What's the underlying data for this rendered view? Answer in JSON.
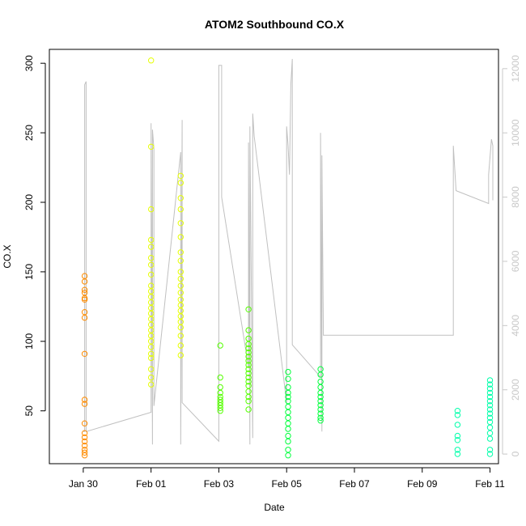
{
  "chart_data": {
    "type": "scatter",
    "title": "ATOM2 Southbound CO.X",
    "xlabel": "Date",
    "ylabel": "CO.X",
    "x_ticks": [
      "Jan 30",
      "Feb 01",
      "Feb 03",
      "Feb 05",
      "Feb 07",
      "Feb 09",
      "Feb 11"
    ],
    "y_ticks": [
      50,
      100,
      150,
      200,
      250,
      300
    ],
    "y2_ticks": [
      0,
      2000,
      4000,
      6000,
      8000,
      10000,
      12000
    ],
    "xlim": [
      "2014-01-29T00:00",
      "2014-02-11T06:00"
    ],
    "ylim": [
      12,
      310
    ],
    "y2lim": [
      -300,
      12600
    ],
    "grid": false,
    "colors": {
      "axis": "#000000",
      "secondary_axis": "#c8c8c8",
      "line": "#c0c0c0"
    },
    "series": [
      {
        "color": "#ff8c00",
        "points": [
          [
            "2014-01-30T01:00",
            147
          ],
          [
            "2014-01-30T01:00",
            143
          ],
          [
            "2014-01-30T01:00",
            137
          ],
          [
            "2014-01-30T01:00",
            135
          ],
          [
            "2014-01-30T01:00",
            131
          ],
          [
            "2014-01-30T01:00",
            130
          ],
          [
            "2014-01-30T01:00",
            121
          ],
          [
            "2014-01-30T01:00",
            117
          ],
          [
            "2014-01-30T01:00",
            91
          ],
          [
            "2014-01-30T01:00",
            58
          ],
          [
            "2014-01-30T01:00",
            55
          ],
          [
            "2014-01-30T01:00",
            41
          ],
          [
            "2014-01-30T01:00",
            34
          ],
          [
            "2014-01-30T01:00",
            31
          ],
          [
            "2014-01-30T01:00",
            28
          ],
          [
            "2014-01-30T01:00",
            25
          ],
          [
            "2014-01-30T01:00",
            22
          ],
          [
            "2014-01-30T01:00",
            20
          ],
          [
            "2014-01-30T01:00",
            18
          ]
        ]
      },
      {
        "color": "#e6ff00",
        "points": [
          [
            "2014-02-01T00:00",
            302
          ],
          [
            "2014-02-01T00:00",
            240
          ],
          [
            "2014-02-01T00:00",
            195
          ],
          [
            "2014-02-01T00:00",
            173
          ],
          [
            "2014-02-01T00:00",
            168
          ],
          [
            "2014-02-01T00:00",
            160
          ],
          [
            "2014-02-01T00:00",
            155
          ],
          [
            "2014-02-01T00:00",
            148
          ],
          [
            "2014-02-01T00:00",
            140
          ],
          [
            "2014-02-01T00:00",
            136
          ],
          [
            "2014-02-01T00:00",
            132
          ],
          [
            "2014-02-01T00:00",
            128
          ],
          [
            "2014-02-01T00:00",
            124
          ],
          [
            "2014-02-01T00:00",
            120
          ],
          [
            "2014-02-01T00:00",
            116
          ],
          [
            "2014-02-01T00:00",
            112
          ],
          [
            "2014-02-01T00:00",
            108
          ],
          [
            "2014-02-01T00:00",
            104
          ],
          [
            "2014-02-01T00:00",
            100
          ],
          [
            "2014-02-01T00:00",
            96
          ],
          [
            "2014-02-01T00:00",
            91
          ],
          [
            "2014-02-01T00:00",
            88
          ],
          [
            "2014-02-01T00:00",
            80
          ],
          [
            "2014-02-01T00:00",
            74
          ],
          [
            "2014-02-01T00:00",
            69
          ],
          [
            "2014-02-01T21:00",
            219
          ],
          [
            "2014-02-01T21:00",
            214
          ],
          [
            "2014-02-01T21:00",
            203
          ],
          [
            "2014-02-01T21:00",
            195
          ],
          [
            "2014-02-01T21:00",
            185
          ],
          [
            "2014-02-01T21:00",
            175
          ],
          [
            "2014-02-01T21:00",
            164
          ],
          [
            "2014-02-01T21:00",
            158
          ],
          [
            "2014-02-01T21:00",
            150
          ],
          [
            "2014-02-01T21:00",
            145
          ],
          [
            "2014-02-01T21:00",
            140
          ],
          [
            "2014-02-01T21:00",
            135
          ],
          [
            "2014-02-01T21:00",
            130
          ],
          [
            "2014-02-01T21:00",
            126
          ],
          [
            "2014-02-01T21:00",
            122
          ],
          [
            "2014-02-01T21:00",
            118
          ],
          [
            "2014-02-01T21:00",
            114
          ],
          [
            "2014-02-01T21:00",
            110
          ],
          [
            "2014-02-01T21:00",
            104
          ],
          [
            "2014-02-01T21:00",
            97
          ],
          [
            "2014-02-01T21:00",
            90
          ]
        ]
      },
      {
        "color": "#55ff00",
        "points": [
          [
            "2014-02-03T01:00",
            97
          ],
          [
            "2014-02-03T01:00",
            74
          ],
          [
            "2014-02-03T01:00",
            67
          ],
          [
            "2014-02-03T01:00",
            63
          ],
          [
            "2014-02-03T01:00",
            60
          ],
          [
            "2014-02-03T01:00",
            58
          ],
          [
            "2014-02-03T01:00",
            56
          ],
          [
            "2014-02-03T01:00",
            54
          ],
          [
            "2014-02-03T01:00",
            52
          ],
          [
            "2014-02-03T01:00",
            50
          ],
          [
            "2014-02-03T21:00",
            123
          ],
          [
            "2014-02-03T21:00",
            108
          ],
          [
            "2014-02-03T21:00",
            102
          ],
          [
            "2014-02-03T21:00",
            98
          ],
          [
            "2014-02-03T21:00",
            95
          ],
          [
            "2014-02-03T21:00",
            92
          ],
          [
            "2014-02-03T21:00",
            89
          ],
          [
            "2014-02-03T21:00",
            86
          ],
          [
            "2014-02-03T21:00",
            83
          ],
          [
            "2014-02-03T21:00",
            80
          ],
          [
            "2014-02-03T21:00",
            77
          ],
          [
            "2014-02-03T21:00",
            74
          ],
          [
            "2014-02-03T21:00",
            71
          ],
          [
            "2014-02-03T21:00",
            68
          ],
          [
            "2014-02-03T21:00",
            64
          ],
          [
            "2014-02-03T21:00",
            60
          ],
          [
            "2014-02-03T21:00",
            57
          ],
          [
            "2014-02-03T21:00",
            51
          ]
        ]
      },
      {
        "color": "#00ff3c",
        "points": [
          [
            "2014-02-05T01:00",
            78
          ],
          [
            "2014-02-05T01:00",
            73
          ],
          [
            "2014-02-05T01:00",
            67
          ],
          [
            "2014-02-05T01:00",
            63
          ],
          [
            "2014-02-05T01:00",
            60
          ],
          [
            "2014-02-05T01:00",
            57
          ],
          [
            "2014-02-05T01:00",
            53
          ],
          [
            "2014-02-05T01:00",
            49
          ],
          [
            "2014-02-05T01:00",
            45
          ],
          [
            "2014-02-05T01:00",
            41
          ],
          [
            "2014-02-05T01:00",
            37
          ],
          [
            "2014-02-05T01:00",
            32
          ],
          [
            "2014-02-05T01:00",
            28
          ],
          [
            "2014-02-05T01:00",
            22
          ],
          [
            "2014-02-05T01:00",
            18
          ],
          [
            "2014-02-06T00:00",
            80
          ],
          [
            "2014-02-06T00:00",
            76
          ],
          [
            "2014-02-06T00:00",
            71
          ],
          [
            "2014-02-06T00:00",
            67
          ],
          [
            "2014-02-06T00:00",
            63
          ],
          [
            "2014-02-06T00:00",
            60
          ],
          [
            "2014-02-06T00:00",
            57
          ],
          [
            "2014-02-06T00:00",
            54
          ],
          [
            "2014-02-06T00:00",
            51
          ],
          [
            "2014-02-06T00:00",
            48
          ],
          [
            "2014-02-06T00:00",
            45
          ],
          [
            "2014-02-06T00:00",
            43
          ]
        ]
      },
      {
        "color": "#00ffaa",
        "points": [
          [
            "2014-02-10T01:00",
            50
          ],
          [
            "2014-02-10T01:00",
            47
          ],
          [
            "2014-02-10T01:00",
            40
          ],
          [
            "2014-02-10T01:00",
            32
          ],
          [
            "2014-02-10T01:00",
            29
          ],
          [
            "2014-02-10T01:00",
            22
          ],
          [
            "2014-02-10T01:00",
            19
          ],
          [
            "2014-02-11T00:00",
            72
          ],
          [
            "2014-02-11T00:00",
            69
          ],
          [
            "2014-02-11T00:00",
            66
          ],
          [
            "2014-02-11T00:00",
            63
          ],
          [
            "2014-02-11T00:00",
            60
          ],
          [
            "2014-02-11T00:00",
            57
          ],
          [
            "2014-02-11T00:00",
            54
          ],
          [
            "2014-02-11T00:00",
            51
          ],
          [
            "2014-02-11T00:00",
            48
          ],
          [
            "2014-02-11T00:00",
            45
          ],
          [
            "2014-02-11T00:00",
            42
          ],
          [
            "2014-02-11T00:00",
            38
          ],
          [
            "2014-02-11T00:00",
            34
          ],
          [
            "2014-02-11T00:00",
            30
          ],
          [
            "2014-02-11T00:00",
            22
          ],
          [
            "2014-02-11T00:00",
            19
          ]
        ]
      }
    ],
    "secondary_line": {
      "color": "#c0c0c0",
      "points": [
        [
          "2014-01-30T00:00",
          700
        ],
        [
          "2014-01-30T01:00",
          700
        ],
        [
          "2014-01-30T01:00",
          11500
        ],
        [
          "2014-01-30T02:00",
          11600
        ],
        [
          "2014-01-30T02:00",
          700
        ],
        [
          "2014-02-01T00:00",
          1300
        ],
        [
          "2014-02-01T00:00",
          10300
        ],
        [
          "2014-02-01T01:00",
          300
        ],
        [
          "2014-02-01T01:00",
          10100
        ],
        [
          "2014-02-01T02:00",
          9500
        ],
        [
          "2014-02-01T02:00",
          1500
        ],
        [
          "2014-02-01T21:00",
          9400
        ],
        [
          "2014-02-01T21:00",
          300
        ],
        [
          "2014-02-01T22:00",
          10400
        ],
        [
          "2014-02-01T22:00",
          1600
        ],
        [
          "2014-02-03T00:00",
          400
        ],
        [
          "2014-02-03T00:00",
          12100
        ],
        [
          "2014-02-03T02:00",
          12100
        ],
        [
          "2014-02-03T02:00",
          8000
        ],
        [
          "2014-02-03T21:00",
          2700
        ],
        [
          "2014-02-03T21:00",
          9700
        ],
        [
          "2014-02-03T22:00",
          300
        ],
        [
          "2014-02-03T22:00",
          10200
        ],
        [
          "2014-02-04T00:00",
          500
        ],
        [
          "2014-02-04T00:00",
          10600
        ],
        [
          "2014-02-04T01:00",
          9900
        ],
        [
          "2014-02-05T00:00",
          1600
        ],
        [
          "2014-02-05T00:00",
          10200
        ],
        [
          "2014-02-05T01:00",
          9600
        ],
        [
          "2014-02-05T02:00",
          8700
        ],
        [
          "2014-02-05T03:00",
          11500
        ],
        [
          "2014-02-05T04:00",
          12300
        ],
        [
          "2014-02-05T04:00",
          3400
        ],
        [
          "2014-02-06T00:00",
          2400
        ],
        [
          "2014-02-06T00:00",
          10000
        ],
        [
          "2014-02-06T01:00",
          700
        ],
        [
          "2014-02-06T01:00",
          9300
        ],
        [
          "2014-02-06T02:00",
          3700
        ],
        [
          "2014-02-09T22:00",
          3700
        ],
        [
          "2014-02-09T22:00",
          9600
        ],
        [
          "2014-02-10T00:00",
          8200
        ],
        [
          "2014-02-10T23:00",
          7800
        ],
        [
          "2014-02-10T23:00",
          8700
        ],
        [
          "2014-02-11T01:00",
          9800
        ],
        [
          "2014-02-11T02:00",
          9600
        ],
        [
          "2014-02-11T02:00",
          7900
        ]
      ]
    }
  }
}
